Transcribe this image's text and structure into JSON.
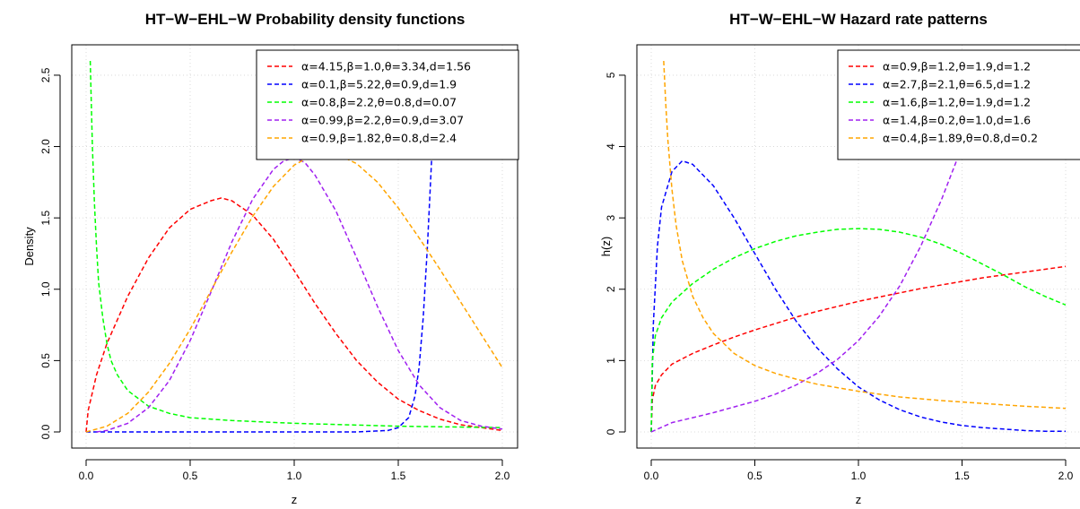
{
  "chart_data": [
    {
      "type": "line",
      "title": "HT−W−EHL−W Probability density functions",
      "xlabel": "z",
      "ylabel": "Density",
      "xlim": [
        0,
        2
      ],
      "ylim": [
        0,
        2.6
      ],
      "xticks": [
        "0.0",
        "0.5",
        "1.0",
        "1.5",
        "2.0"
      ],
      "yticks": [
        "0.0",
        "0.5",
        "1.0",
        "1.5",
        "2.0",
        "2.5"
      ],
      "grid": true,
      "legend_position": "top-right",
      "line_style": "dashed",
      "series": [
        {
          "name": "α=4.15,β=1.0,θ=3.34,d=1.56",
          "color": "#ff0000",
          "x": [
            0.0,
            0.01,
            0.05,
            0.1,
            0.2,
            0.3,
            0.4,
            0.5,
            0.6,
            0.65,
            0.7,
            0.8,
            0.9,
            1.0,
            1.1,
            1.2,
            1.3,
            1.4,
            1.5,
            1.6,
            1.7,
            1.8,
            1.9,
            2.0
          ],
          "y": [
            0.0,
            0.15,
            0.4,
            0.62,
            0.95,
            1.22,
            1.43,
            1.56,
            1.62,
            1.64,
            1.62,
            1.52,
            1.35,
            1.13,
            0.9,
            0.69,
            0.5,
            0.35,
            0.23,
            0.15,
            0.09,
            0.05,
            0.03,
            0.01
          ]
        },
        {
          "name": "α=0.1,β=5.22,θ=0.9,d=1.9",
          "color": "#0000ff",
          "x": [
            0.0,
            0.5,
            1.0,
            1.3,
            1.45,
            1.5,
            1.55,
            1.58,
            1.6,
            1.62,
            1.64,
            1.66,
            1.68,
            1.7
          ],
          "y": [
            0.0,
            0.0,
            0.0,
            0.0,
            0.01,
            0.03,
            0.1,
            0.25,
            0.45,
            0.8,
            1.3,
            1.9,
            2.4,
            2.6
          ]
        },
        {
          "name": "α=0.8,β=2.2,θ=0.8,d=0.07",
          "color": "#00ff00",
          "x": [
            0.02,
            0.03,
            0.04,
            0.05,
            0.06,
            0.08,
            0.1,
            0.12,
            0.15,
            0.2,
            0.3,
            0.4,
            0.5,
            0.7,
            1.0,
            1.5,
            2.0
          ],
          "y": [
            2.6,
            2.0,
            1.6,
            1.3,
            1.05,
            0.8,
            0.62,
            0.5,
            0.4,
            0.29,
            0.18,
            0.13,
            0.1,
            0.08,
            0.06,
            0.04,
            0.03
          ]
        },
        {
          "name": "α=0.99,β=2.2,θ=0.9,d=3.07",
          "color": "#a020f0",
          "x": [
            0.05,
            0.1,
            0.2,
            0.3,
            0.4,
            0.5,
            0.6,
            0.7,
            0.8,
            0.9,
            0.95,
            1.0,
            1.05,
            1.1,
            1.2,
            1.3,
            1.4,
            1.5,
            1.6,
            1.7,
            1.8,
            1.9,
            2.0
          ],
          "y": [
            0.0,
            0.01,
            0.06,
            0.17,
            0.36,
            0.64,
            0.98,
            1.33,
            1.63,
            1.84,
            1.9,
            1.92,
            1.89,
            1.8,
            1.55,
            1.22,
            0.88,
            0.57,
            0.33,
            0.17,
            0.08,
            0.04,
            0.02
          ]
        },
        {
          "name": "α=0.9,β=1.82,θ=0.8,d=2.4",
          "color": "#ffa500",
          "x": [
            0.0,
            0.1,
            0.2,
            0.3,
            0.4,
            0.5,
            0.6,
            0.7,
            0.8,
            0.9,
            1.0,
            1.1,
            1.2,
            1.3,
            1.4,
            1.5,
            1.6,
            1.7,
            1.8,
            1.9,
            2.0
          ],
          "y": [
            0.0,
            0.04,
            0.13,
            0.28,
            0.48,
            0.72,
            0.99,
            1.26,
            1.51,
            1.72,
            1.87,
            1.95,
            1.95,
            1.88,
            1.75,
            1.57,
            1.36,
            1.14,
            0.91,
            0.68,
            0.45
          ]
        }
      ]
    },
    {
      "type": "line",
      "title": "HT−W−EHL−W Hazard rate patterns",
      "xlabel": "z",
      "ylabel": "h(z)",
      "xlim": [
        0,
        2
      ],
      "ylim": [
        0,
        5.2
      ],
      "xticks": [
        "0.0",
        "0.5",
        "1.0",
        "1.5",
        "2.0"
      ],
      "yticks": [
        "0",
        "1",
        "2",
        "3",
        "4",
        "5"
      ],
      "grid": true,
      "legend_position": "top-right",
      "line_style": "dashed",
      "series": [
        {
          "name": "α=0.9,β=1.2,θ=1.9,d=1.2",
          "color": "#ff0000",
          "x": [
            0.0,
            0.005,
            0.02,
            0.05,
            0.1,
            0.2,
            0.3,
            0.4,
            0.5,
            0.6,
            0.7,
            0.8,
            0.9,
            1.0,
            1.1,
            1.2,
            1.3,
            1.4,
            1.5,
            1.6,
            1.7,
            1.8,
            1.9,
            2.0
          ],
          "y": [
            0.0,
            0.45,
            0.65,
            0.8,
            0.95,
            1.1,
            1.22,
            1.33,
            1.43,
            1.52,
            1.61,
            1.69,
            1.76,
            1.83,
            1.89,
            1.95,
            2.01,
            2.06,
            2.11,
            2.16,
            2.2,
            2.24,
            2.28,
            2.32
          ]
        },
        {
          "name": "α=2.7,β=2.1,θ=6.5,d=1.2",
          "color": "#0000ff",
          "x": [
            0.0,
            0.01,
            0.03,
            0.05,
            0.1,
            0.15,
            0.2,
            0.3,
            0.4,
            0.5,
            0.6,
            0.7,
            0.8,
            0.9,
            1.0,
            1.1,
            1.2,
            1.3,
            1.4,
            1.5,
            1.6,
            1.7,
            1.8,
            1.9,
            2.0
          ],
          "y": [
            0.0,
            1.5,
            2.6,
            3.15,
            3.65,
            3.8,
            3.75,
            3.45,
            3.0,
            2.5,
            2.0,
            1.55,
            1.18,
            0.88,
            0.63,
            0.45,
            0.31,
            0.21,
            0.14,
            0.09,
            0.06,
            0.04,
            0.02,
            0.01,
            0.01
          ]
        },
        {
          "name": "α=1.6,β=1.2,θ=1.9,d=1.2",
          "color": "#00ff00",
          "x": [
            0.0,
            0.005,
            0.02,
            0.05,
            0.1,
            0.2,
            0.3,
            0.4,
            0.5,
            0.6,
            0.7,
            0.8,
            0.9,
            1.0,
            1.1,
            1.2,
            1.3,
            1.4,
            1.5,
            1.6,
            1.7,
            1.8,
            1.9,
            2.0
          ],
          "y": [
            0.0,
            1.0,
            1.35,
            1.6,
            1.82,
            2.08,
            2.28,
            2.44,
            2.57,
            2.67,
            2.75,
            2.8,
            2.84,
            2.85,
            2.84,
            2.8,
            2.73,
            2.63,
            2.5,
            2.35,
            2.2,
            2.04,
            1.9,
            1.78
          ]
        },
        {
          "name": "α=1.4,β=0.2,θ=1.0,d=1.6",
          "color": "#a020f0",
          "x": [
            0.0,
            0.1,
            0.2,
            0.3,
            0.4,
            0.5,
            0.6,
            0.7,
            0.8,
            0.9,
            1.0,
            1.1,
            1.2,
            1.3,
            1.4,
            1.5,
            1.6,
            1.65
          ],
          "y": [
            0.0,
            0.13,
            0.2,
            0.27,
            0.35,
            0.43,
            0.53,
            0.66,
            0.82,
            1.02,
            1.28,
            1.62,
            2.05,
            2.6,
            3.25,
            4.0,
            4.85,
            5.2
          ]
        },
        {
          "name": "α=0.4,β=1.89,θ=0.8,d=0.2",
          "color": "#ffa500",
          "x": [
            0.06,
            0.07,
            0.08,
            0.1,
            0.12,
            0.15,
            0.2,
            0.25,
            0.3,
            0.4,
            0.5,
            0.6,
            0.7,
            0.8,
            1.0,
            1.2,
            1.4,
            1.6,
            1.8,
            2.0
          ],
          "y": [
            5.2,
            4.6,
            4.1,
            3.4,
            2.9,
            2.4,
            1.9,
            1.6,
            1.38,
            1.1,
            0.93,
            0.82,
            0.74,
            0.67,
            0.57,
            0.49,
            0.44,
            0.4,
            0.36,
            0.33
          ]
        }
      ]
    }
  ]
}
